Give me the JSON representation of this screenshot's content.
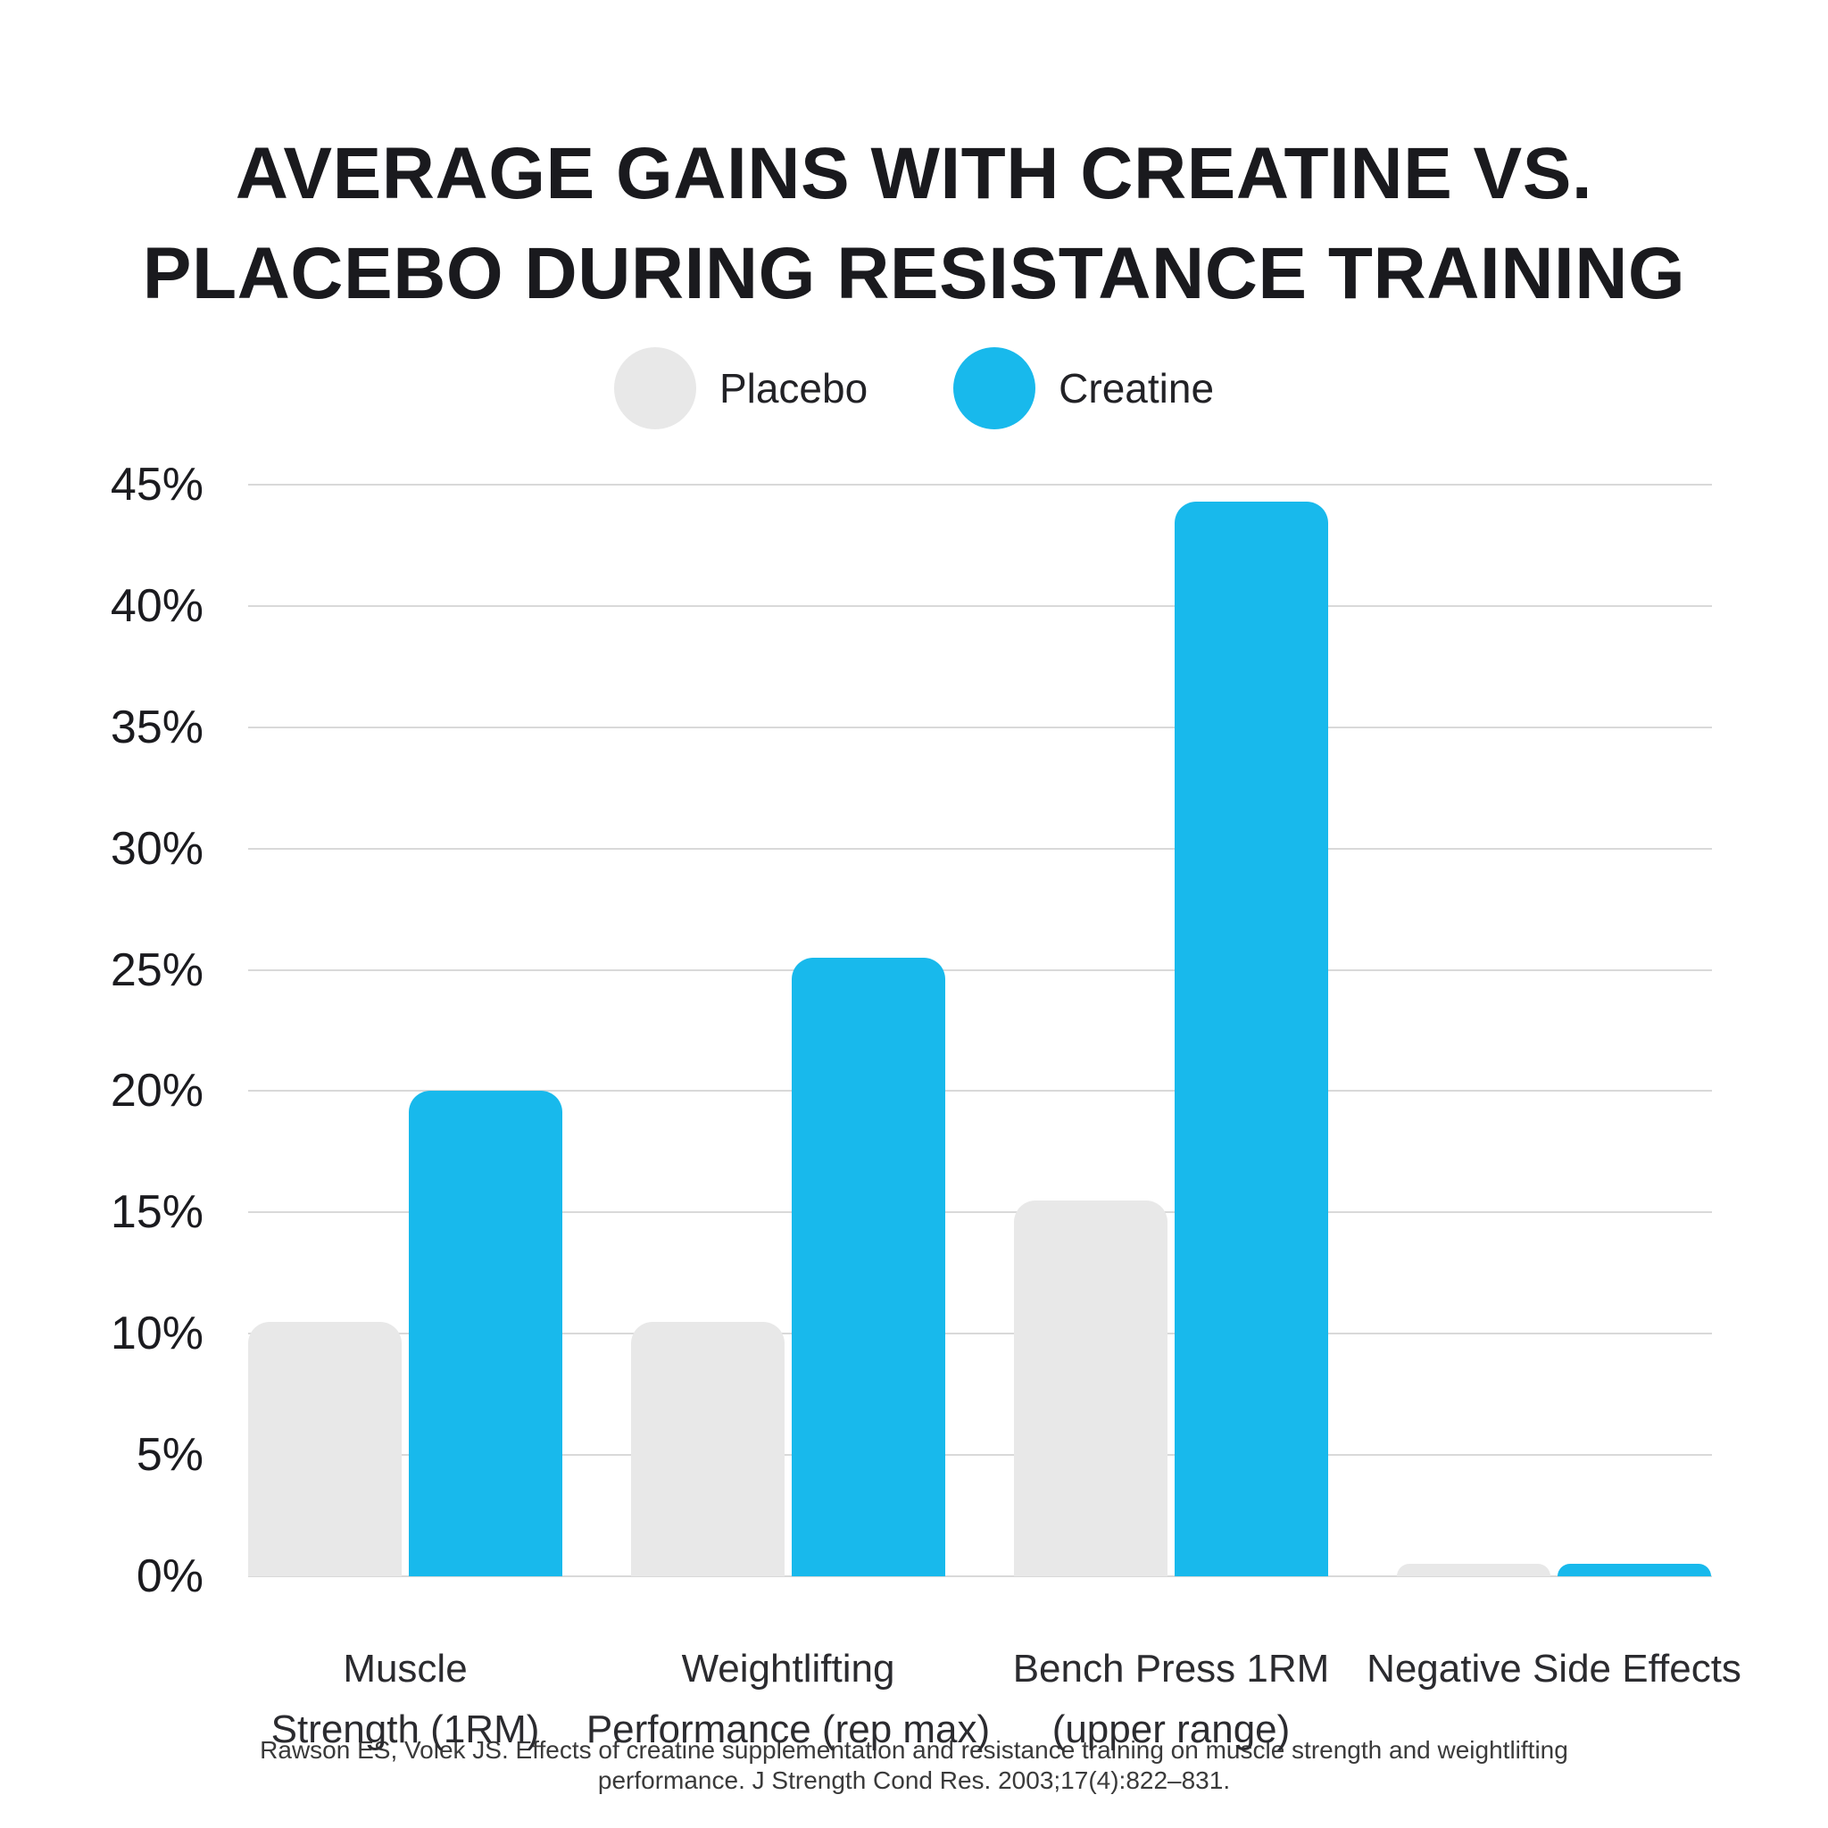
{
  "title": {
    "lines": [
      "AVERAGE GAINS WITH CREATINE VS.",
      "PLACEBO DURING RESISTANCE TRAINING"
    ]
  },
  "legend": {
    "items": [
      {
        "label": "Placebo",
        "color": "#e8e8e8"
      },
      {
        "label": "Creatine",
        "color": "#18b9ec"
      }
    ]
  },
  "chart_data": {
    "type": "bar",
    "title": "Average gains with creatine vs. placebo during resistance training",
    "categories": [
      "Muscle Strength (1RM)",
      "Weightlifting Performance (rep max)",
      "Bench Press 1RM (upper range)",
      "Negative Side Effects"
    ],
    "category_label_lines": [
      [
        "Muscle",
        "Strength (1RM)"
      ],
      [
        "Weightlifting",
        "Performance (rep max)"
      ],
      [
        "Bench Press 1RM",
        "(upper range)"
      ],
      [
        "Negative Side Effects"
      ]
    ],
    "series": [
      {
        "name": "Placebo",
        "color": "#e8e8e8",
        "values": [
          10.5,
          10.5,
          15.5,
          0.5
        ]
      },
      {
        "name": "Creatine",
        "color": "#18b9ec",
        "values": [
          20,
          25.5,
          44.3,
          0.5
        ]
      }
    ],
    "unit": "%",
    "xlabel": "",
    "ylabel": "",
    "ylim": [
      0,
      45
    ],
    "y_tick_values": [
      0,
      5,
      10,
      15,
      20,
      25,
      30,
      35,
      40,
      45
    ],
    "y_tick_suffix": "%",
    "grid": true,
    "legend_position": "top"
  },
  "footnote": {
    "lines": [
      "Rawson ES, Volek JS. Effects of creatine supplementation and resistance training on muscle strength and weightlifting",
      "performance. J Strength Cond Res. 2003;17(4):822–831."
    ]
  },
  "colors": {
    "background": "#ffffff",
    "gridline": "#d9d9d9",
    "title_text": "#1a1a1e",
    "axis_text": "#1b1b1f",
    "category_text": "#2b2b2f",
    "footnote_text": "#3a3a3a"
  }
}
